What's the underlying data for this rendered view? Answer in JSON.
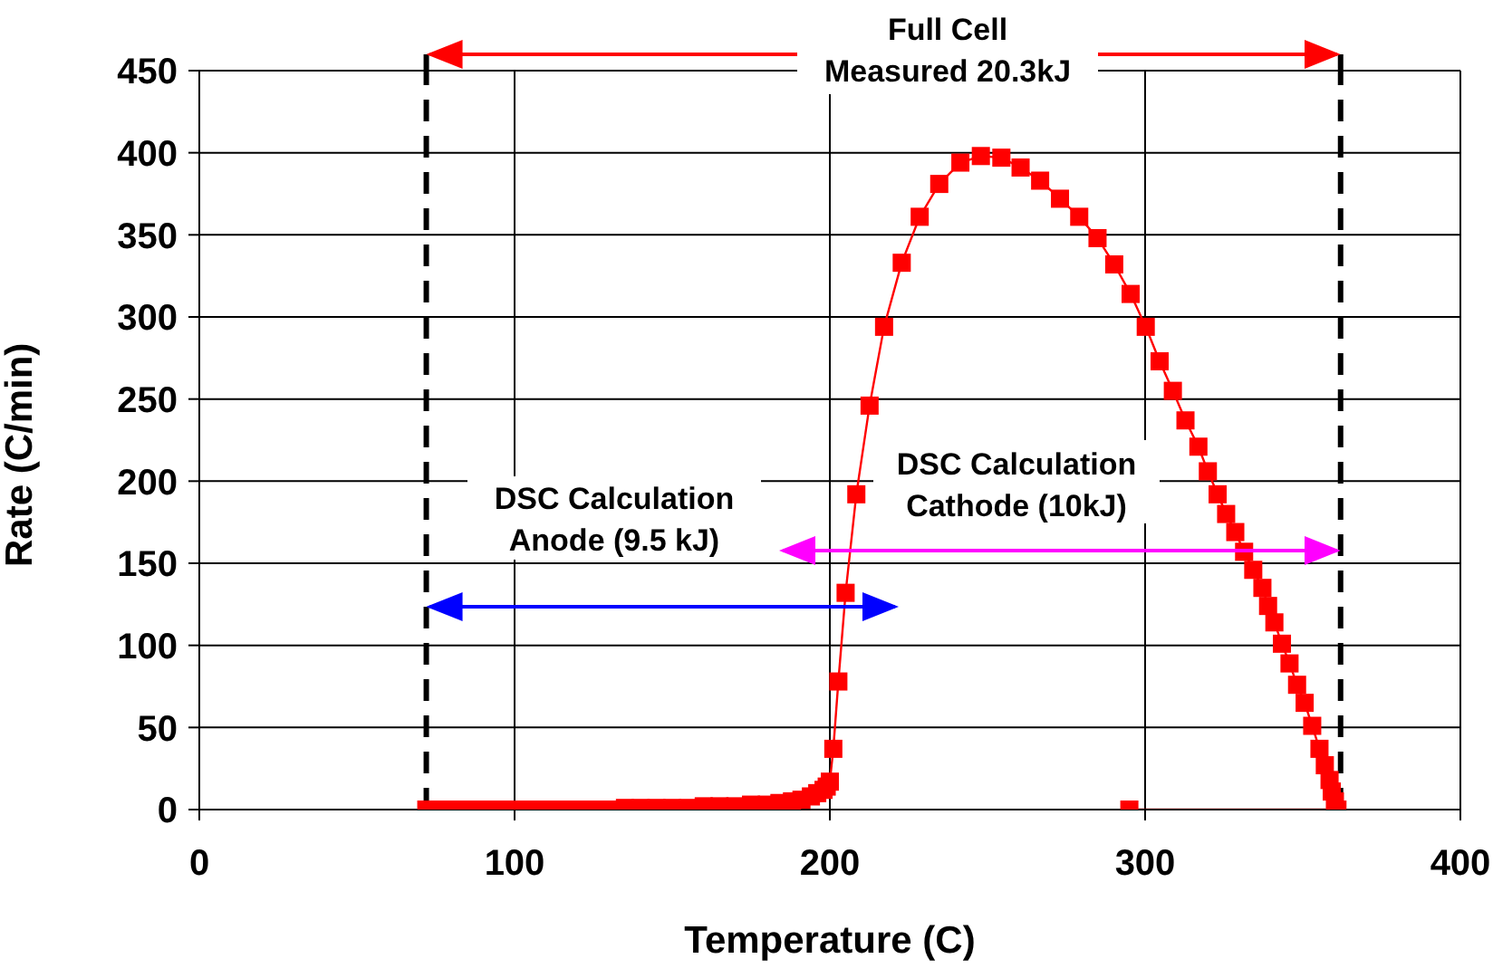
{
  "chart_data": {
    "type": "line",
    "xlabel": "Temperature (C)",
    "ylabel": "Rate (C/min)",
    "xlim": [
      0,
      400
    ],
    "xticks": [
      0,
      100,
      200,
      300,
      400
    ],
    "ylim": [
      0,
      450
    ],
    "yticks": [
      0,
      50,
      100,
      150,
      200,
      250,
      300,
      350,
      400,
      450
    ],
    "grid": true,
    "marker": "square",
    "line_style": "solid",
    "ref_lines": [
      {
        "axis": "x",
        "value": 72,
        "color": "#000000",
        "line_style": "dashed"
      },
      {
        "axis": "x",
        "value": 362,
        "color": "#000000",
        "line_style": "dashed"
      }
    ],
    "annotations": [
      "Full Cell\nMeasured 20.3kJ",
      "DSC Calculation\nAnode (9.5 kJ)",
      "DSC Calculation\nCathode (10kJ)"
    ],
    "series": [
      {
        "color": "#ff0000",
        "x": [
          72,
          76,
          80,
          84,
          88,
          92,
          96,
          100,
          105,
          110,
          115,
          120,
          125,
          130,
          135,
          140,
          145,
          150,
          155,
          160,
          165,
          170,
          175,
          180,
          184,
          188,
          191,
          194,
          196,
          198,
          199,
          200,
          201.1,
          202.7,
          205,
          208.4,
          212.6,
          217.2,
          222.8,
          228.5,
          234.7,
          241.4,
          247.9,
          254.4,
          260.5,
          266.7,
          273,
          279.1,
          284.9,
          290.2,
          295.4,
          300.2,
          304.6,
          308.8,
          312.8,
          316.9,
          319.9,
          323,
          325.7,
          328.6,
          331.4,
          334.3,
          337.2,
          339,
          341,
          343.4,
          345.8,
          348.2,
          350.6,
          353,
          355.3,
          357,
          358.5,
          359.2,
          360.2,
          361,
          295
        ],
        "values": [
          0,
          0,
          0,
          0,
          0,
          0,
          0,
          0,
          0,
          0,
          0,
          0,
          0,
          0,
          1,
          1,
          1,
          1,
          1,
          2,
          2,
          2,
          3,
          3,
          4,
          5,
          6,
          8,
          10,
          12,
          14,
          17,
          37,
          78,
          132,
          192,
          246,
          294,
          333,
          361,
          381,
          394,
          398,
          397,
          391,
          383,
          372,
          361,
          348,
          332,
          314,
          294,
          273,
          255,
          237,
          221,
          206,
          192,
          180,
          169,
          157,
          146,
          135,
          124,
          114,
          101,
          89,
          76,
          65,
          51,
          37,
          27,
          18,
          11,
          5,
          0,
          0
        ]
      }
    ]
  }
}
